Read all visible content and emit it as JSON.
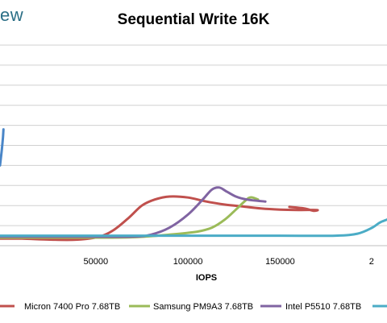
{
  "logo_text": "ew",
  "chart_data": {
    "type": "line",
    "title": "Sequential Write 16K",
    "xlabel": "IOPS",
    "ylabel": "",
    "x_ticks": [
      "50000",
      "100000",
      "150000",
      "2"
    ],
    "xlim": [
      -2000,
      208000
    ],
    "ylim": [
      0,
      10
    ],
    "grid": true,
    "legend_position": "bottom",
    "series": [
      {
        "name": "",
        "color": "#4a86c8",
        "points": [
          [
            -2000,
            4.0
          ],
          [
            -1000,
            4.8
          ],
          [
            -400,
            5.4
          ],
          [
            -100,
            5.8
          ]
        ]
      },
      {
        "name": "Micron 7400 Pro 7.68TB",
        "color": "#c0504d",
        "points": [
          [
            -2000,
            0.35
          ],
          [
            10000,
            0.35
          ],
          [
            25000,
            0.3
          ],
          [
            40000,
            0.3
          ],
          [
            52000,
            0.45
          ],
          [
            60000,
            0.8
          ],
          [
            68000,
            1.4
          ],
          [
            75000,
            2.0
          ],
          [
            82000,
            2.3
          ],
          [
            90000,
            2.45
          ],
          [
            100000,
            2.4
          ],
          [
            110000,
            2.2
          ],
          [
            120000,
            2.05
          ],
          [
            130000,
            1.95
          ],
          [
            140000,
            1.85
          ],
          [
            150000,
            1.8
          ],
          [
            160000,
            1.78
          ],
          [
            170000,
            1.78
          ],
          [
            168000,
            1.74
          ],
          [
            163000,
            1.86
          ],
          [
            155000,
            1.93
          ]
        ]
      },
      {
        "name": "Samsung PM9A3 7.68TB",
        "color": "#9bbb59",
        "points": [
          [
            -2000,
            0.4
          ],
          [
            40000,
            0.4
          ],
          [
            70000,
            0.42
          ],
          [
            90000,
            0.55
          ],
          [
            105000,
            0.7
          ],
          [
            113000,
            0.9
          ],
          [
            120000,
            1.3
          ],
          [
            126000,
            1.8
          ],
          [
            130000,
            2.15
          ],
          [
            133000,
            2.38
          ],
          [
            135000,
            2.4
          ],
          [
            138000,
            2.3
          ]
        ]
      },
      {
        "name": "Intel P5510 7.68TB",
        "color": "#8064a2",
        "points": [
          [
            -2000,
            0.45
          ],
          [
            40000,
            0.45
          ],
          [
            70000,
            0.45
          ],
          [
            80000,
            0.55
          ],
          [
            90000,
            0.9
          ],
          [
            100000,
            1.55
          ],
          [
            108000,
            2.3
          ],
          [
            113000,
            2.8
          ],
          [
            117000,
            2.9
          ],
          [
            121000,
            2.7
          ],
          [
            126000,
            2.45
          ],
          [
            132000,
            2.3
          ],
          [
            142000,
            2.2
          ]
        ]
      },
      {
        "name": "",
        "color": "#4bacc6",
        "points": [
          [
            -2000,
            0.5
          ],
          [
            50000,
            0.5
          ],
          [
            100000,
            0.5
          ],
          [
            150000,
            0.5
          ],
          [
            180000,
            0.5
          ],
          [
            192000,
            0.6
          ],
          [
            200000,
            0.9
          ],
          [
            204000,
            1.15
          ],
          [
            208000,
            1.3
          ]
        ]
      }
    ]
  }
}
